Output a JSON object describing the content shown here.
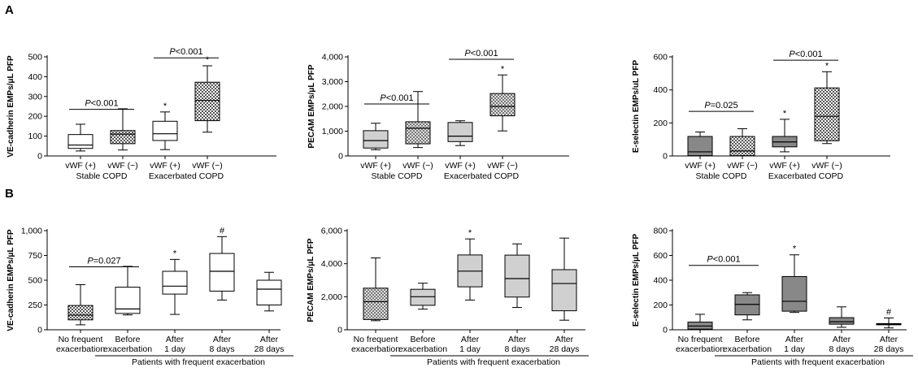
{
  "panels": [
    {
      "letter": "A"
    },
    {
      "letter": "B"
    }
  ],
  "chart_data": [
    {
      "type": "box",
      "panel": "A",
      "ylabel": "VE-cadherin EMPs/μL PFP",
      "ylim": [
        0,
        500
      ],
      "yticks": [
        "0",
        "100",
        "200",
        "300",
        "400",
        "500"
      ],
      "ytick_values": [
        0,
        100,
        200,
        300,
        400,
        500
      ],
      "categories": [
        "vWF (+)",
        "vWF (−)",
        "vWF (+)",
        "vWF (−)"
      ],
      "groups": [
        {
          "label": "Stable COPD",
          "from": 0,
          "to": 1
        },
        {
          "label": "Exacerbated COPD",
          "from": 2,
          "to": 3
        }
      ],
      "boxes": [
        {
          "min": 25,
          "q1": 38,
          "median": 55,
          "q3": 108,
          "max": 160,
          "fill": "#ffffff",
          "pattern": false,
          "star": ""
        },
        {
          "min": 30,
          "q1": 62,
          "median": 110,
          "q3": 128,
          "max": 238,
          "fill": "#888888",
          "pattern": true,
          "star": ""
        },
        {
          "min": 32,
          "q1": 78,
          "median": 112,
          "q3": 175,
          "max": 222,
          "fill": "#ffffff",
          "pattern": false,
          "star": "*"
        },
        {
          "min": 120,
          "q1": 178,
          "median": 280,
          "q3": 372,
          "max": 455,
          "fill": "#888888",
          "pattern": true,
          "star": "*"
        }
      ],
      "brackets": [
        {
          "text_prefix": "P",
          "text": "<0.001",
          "from": 0,
          "to": 1,
          "y": 235
        },
        {
          "text_prefix": "P",
          "text": "<0.001",
          "from": 2,
          "to": 3,
          "y": 495
        }
      ]
    },
    {
      "type": "box",
      "panel": "A",
      "ylabel": "PECAM EMPs/μL PFP",
      "ylim": [
        0,
        4000
      ],
      "yticks": [
        "0",
        "1,000",
        "2,000",
        "3,000",
        "4,000"
      ],
      "ytick_values": [
        0,
        1000,
        2000,
        3000,
        4000
      ],
      "categories": [
        "vWF (+)",
        "vWF (−)",
        "vWF (+)",
        "vWF (−)"
      ],
      "groups": [
        {
          "label": "Stable COPD",
          "from": 0,
          "to": 1
        },
        {
          "label": "Exacerbated COPD",
          "from": 2,
          "to": 3
        }
      ],
      "boxes": [
        {
          "min": 250,
          "q1": 320,
          "median": 620,
          "q3": 1020,
          "max": 1320,
          "fill": "#d0d0d0",
          "pattern": false,
          "star": ""
        },
        {
          "min": 340,
          "q1": 490,
          "median": 1120,
          "q3": 1380,
          "max": 2600,
          "fill": "#d0d0d0",
          "pattern": true,
          "star": ""
        },
        {
          "min": 420,
          "q1": 580,
          "median": 800,
          "q3": 1350,
          "max": 1420,
          "fill": "#d0d0d0",
          "pattern": false,
          "star": ""
        },
        {
          "min": 1010,
          "q1": 1620,
          "median": 2000,
          "q3": 2520,
          "max": 3270,
          "fill": "#909090",
          "pattern": true,
          "star": "*"
        }
      ],
      "brackets": [
        {
          "text_prefix": "P",
          "text": "<0.001",
          "from": 0,
          "to": 1,
          "y": 2100
        },
        {
          "text_prefix": "P",
          "text": "<0.001",
          "from": 2,
          "to": 3,
          "y": 3900
        }
      ]
    },
    {
      "type": "box",
      "panel": "A",
      "ylabel": "E-selectin EMPs/uL PFP",
      "ylim": [
        0,
        600
      ],
      "yticks": [
        "0",
        "200",
        "400",
        "600"
      ],
      "ytick_values": [
        0,
        200,
        400,
        600
      ],
      "categories": [
        "vWF (+)",
        "vWF (−)",
        "vWF (+)",
        "vWF (−)"
      ],
      "groups": [
        {
          "label": "Stable COPD",
          "from": 0,
          "to": 1
        },
        {
          "label": "Exacerbated COPD",
          "from": 2,
          "to": 3
        }
      ],
      "boxes": [
        {
          "min": 0,
          "q1": 2,
          "median": 25,
          "q3": 118,
          "max": 145,
          "fill": "#888888",
          "pattern": false,
          "star": ""
        },
        {
          "min": 0,
          "q1": 2,
          "median": 30,
          "q3": 118,
          "max": 165,
          "fill": "#888888",
          "pattern": true,
          "star": ""
        },
        {
          "min": 25,
          "q1": 55,
          "median": 85,
          "q3": 118,
          "max": 222,
          "fill": "#888888",
          "pattern": false,
          "star": "*"
        },
        {
          "min": 75,
          "q1": 92,
          "median": 240,
          "q3": 412,
          "max": 510,
          "fill": "#888888",
          "pattern": true,
          "star": "*"
        }
      ],
      "brackets": [
        {
          "text_prefix": "P",
          "text": "=0.025",
          "from": 0,
          "to": 1,
          "y": 270
        },
        {
          "text_prefix": "P",
          "text": "<0.001",
          "from": 2,
          "to": 3,
          "y": 580
        }
      ]
    },
    {
      "type": "box",
      "panel": "B",
      "ylabel": "VE-cadherin EMPs/μL PFP",
      "ylim": [
        0,
        1000
      ],
      "yticks": [
        "0",
        "250",
        "500",
        "750",
        "1,000"
      ],
      "ytick_values": [
        0,
        250,
        500,
        750,
        1000
      ],
      "categories": [
        "No frequent\nexacerbation",
        "Before\nexacerbation",
        "After\n1 day",
        "After\n8 days",
        "After\n28 days"
      ],
      "groups": [
        {
          "label": "Patients with frequent exacerbation",
          "from": 1,
          "to": 4
        }
      ],
      "boxes": [
        {
          "min": 50,
          "q1": 100,
          "median": 148,
          "q3": 245,
          "max": 455,
          "fill": "#888888",
          "pattern": true,
          "star": ""
        },
        {
          "min": 150,
          "q1": 165,
          "median": 210,
          "q3": 430,
          "max": 640,
          "fill": "#ffffff",
          "pattern": false,
          "star": ""
        },
        {
          "min": 155,
          "q1": 360,
          "median": 440,
          "q3": 590,
          "max": 710,
          "fill": "#ffffff",
          "pattern": false,
          "star": "*"
        },
        {
          "min": 300,
          "q1": 390,
          "median": 590,
          "q3": 770,
          "max": 940,
          "fill": "#ffffff",
          "pattern": false,
          "star": "#"
        },
        {
          "min": 190,
          "q1": 250,
          "median": 410,
          "q3": 500,
          "max": 580,
          "fill": "#ffffff",
          "pattern": false,
          "star": ""
        }
      ],
      "brackets": [
        {
          "text_prefix": "P",
          "text": "=0.027",
          "from": 0,
          "to": 1,
          "y": 635
        }
      ]
    },
    {
      "type": "box",
      "panel": "B",
      "ylabel": "PECAM EMPs/μL PFP",
      "ylim": [
        0,
        6000
      ],
      "yticks": [
        "0",
        "2,000",
        "4,000",
        "6,000"
      ],
      "ytick_values": [
        0,
        2000,
        4000,
        6000
      ],
      "categories": [
        "No frequent\nexacerbation",
        "Before\nexacerbation",
        "After\n1 day",
        "After\n8 days",
        "After\n28 days"
      ],
      "groups": [
        {
          "label": "Patients with frequent exacerbation",
          "from": 1,
          "to": 4
        }
      ],
      "boxes": [
        {
          "min": 550,
          "q1": 620,
          "median": 1700,
          "q3": 2520,
          "max": 4350,
          "fill": "#999999",
          "pattern": true,
          "star": ""
        },
        {
          "min": 1250,
          "q1": 1480,
          "median": 2000,
          "q3": 2450,
          "max": 2820,
          "fill": "#d0d0d0",
          "pattern": false,
          "star": ""
        },
        {
          "min": 1800,
          "q1": 2600,
          "median": 3550,
          "q3": 4530,
          "max": 5500,
          "fill": "#d0d0d0",
          "pattern": false,
          "star": "*"
        },
        {
          "min": 1350,
          "q1": 1980,
          "median": 3100,
          "q3": 4520,
          "max": 5200,
          "fill": "#d0d0d0",
          "pattern": false,
          "star": ""
        },
        {
          "min": 580,
          "q1": 1150,
          "median": 2800,
          "q3": 3640,
          "max": 5550,
          "fill": "#d0d0d0",
          "pattern": false,
          "star": ""
        }
      ],
      "brackets": []
    },
    {
      "type": "box",
      "panel": "B",
      "ylabel": "E-selectin EMPs/μL PFP",
      "ylim": [
        0,
        800
      ],
      "yticks": [
        "0",
        "200",
        "400",
        "600",
        "800"
      ],
      "ytick_values": [
        0,
        200,
        400,
        600,
        800
      ],
      "categories": [
        "No frequent\nexacerbation",
        "Before\nexacerbation",
        "After\n1 day",
        "After\n8 days",
        "After\n28 days"
      ],
      "groups": [
        {
          "label": "Patients with frequent exacerbation",
          "from": 1,
          "to": 4
        }
      ],
      "boxes": [
        {
          "min": 0,
          "q1": 5,
          "median": 30,
          "q3": 62,
          "max": 125,
          "fill": "#888888",
          "pattern": false,
          "star": ""
        },
        {
          "min": 80,
          "q1": 120,
          "median": 205,
          "q3": 282,
          "max": 300,
          "fill": "#888888",
          "pattern": false,
          "star": ""
        },
        {
          "min": 140,
          "q1": 150,
          "median": 230,
          "q3": 430,
          "max": 605,
          "fill": "#888888",
          "pattern": false,
          "star": "*"
        },
        {
          "min": 20,
          "q1": 45,
          "median": 65,
          "q3": 98,
          "max": 185,
          "fill": "#888888",
          "pattern": false,
          "star": ""
        },
        {
          "min": 15,
          "q1": 40,
          "median": 45,
          "q3": 50,
          "max": 95,
          "fill": "#888888",
          "pattern": false,
          "star": "#"
        }
      ],
      "brackets": [
        {
          "text_prefix": "P",
          "text": "<0.001",
          "from": 0,
          "to": 1,
          "y": 520
        }
      ]
    }
  ]
}
